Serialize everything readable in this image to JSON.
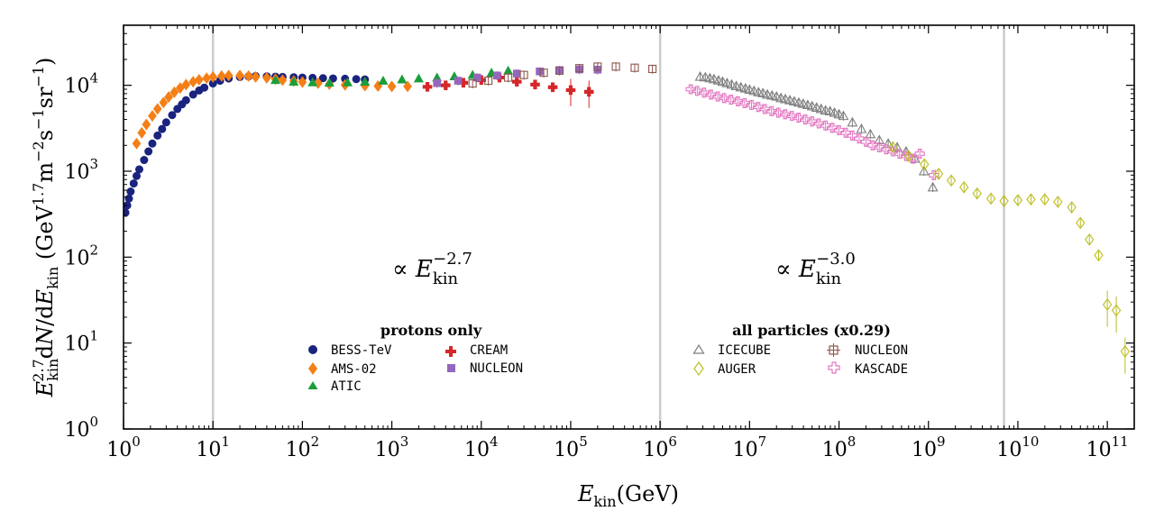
{
  "chart_data": {
    "type": "scatter",
    "xscale": "log",
    "yscale": "log",
    "xlim": [
      1,
      200000000000
    ],
    "ylim": [
      1,
      50000
    ],
    "xlabel": "E_kin (GeV)",
    "ylabel": "E_kin^2.7 dN/dE_kin (GeV^1.7 m^-2 s^-1 sr^-1)",
    "x_ticks": [
      1,
      10,
      100,
      1000,
      10000,
      100000,
      1000000,
      10000000,
      100000000,
      1000000000,
      10000000000,
      100000000000
    ],
    "y_ticks": [
      1,
      10,
      100,
      1000,
      10000
    ],
    "vertical_lines": [
      10,
      1000000,
      7000000000
    ],
    "annotations": [
      {
        "text": "∝ E_kin^-2.7",
        "x": 1500,
        "y": 180
      },
      {
        "text": "∝ E_kin^-3.0",
        "x": 60000000,
        "y": 180
      }
    ],
    "legends": [
      {
        "title": "protons only",
        "entries": [
          "BESS-TeV",
          "AMS-02",
          "ATIC",
          "CREAM",
          "NUCLEON"
        ]
      },
      {
        "title": "all particles (x0.29)",
        "entries": [
          "ICECUBE",
          "AUGER",
          "NUCLEON",
          "KASCADE"
        ]
      }
    ],
    "series": [
      {
        "name": "BESS-TeV",
        "color": "#1a237e",
        "marker": "circle-filled",
        "points": [
          [
            1.05,
            330
          ],
          [
            1.1,
            400
          ],
          [
            1.15,
            480
          ],
          [
            1.2,
            580
          ],
          [
            1.3,
            720
          ],
          [
            1.4,
            880
          ],
          [
            1.5,
            1050
          ],
          [
            1.7,
            1350
          ],
          [
            1.9,
            1700
          ],
          [
            2.1,
            2100
          ],
          [
            2.4,
            2600
          ],
          [
            2.7,
            3100
          ],
          [
            3,
            3700
          ],
          [
            3.5,
            4500
          ],
          [
            4,
            5300
          ],
          [
            4.5,
            6000
          ],
          [
            5,
            6700
          ],
          [
            6,
            7800
          ],
          [
            7,
            8700
          ],
          [
            8,
            9400
          ],
          [
            10,
            10500
          ],
          [
            12,
            11300
          ],
          [
            15,
            12000
          ],
          [
            20,
            12500
          ],
          [
            25,
            12700
          ],
          [
            30,
            12800
          ],
          [
            40,
            12700
          ],
          [
            50,
            12600
          ],
          [
            60,
            12500
          ],
          [
            80,
            12400
          ],
          [
            100,
            12300
          ],
          [
            130,
            12200
          ],
          [
            170,
            12100
          ],
          [
            220,
            12000
          ],
          [
            300,
            11900
          ],
          [
            400,
            11800
          ],
          [
            500,
            11700
          ]
        ]
      },
      {
        "name": "AMS-02",
        "color": "#f57f17",
        "marker": "diamond-filled",
        "points": [
          [
            1.4,
            2100
          ],
          [
            1.6,
            2800
          ],
          [
            1.8,
            3500
          ],
          [
            2.1,
            4400
          ],
          [
            2.4,
            5300
          ],
          [
            2.8,
            6300
          ],
          [
            3.2,
            7300
          ],
          [
            3.7,
            8300
          ],
          [
            4.3,
            9300
          ],
          [
            5,
            10200
          ],
          [
            6,
            11000
          ],
          [
            7,
            11600
          ],
          [
            8.5,
            12100
          ],
          [
            10,
            12500
          ],
          [
            12.5,
            12800
          ],
          [
            15,
            13000
          ],
          [
            20,
            13000
          ],
          [
            25,
            12800
          ],
          [
            30,
            12500
          ],
          [
            40,
            12200
          ],
          [
            50,
            11800
          ],
          [
            60,
            11500
          ],
          [
            80,
            11200
          ],
          [
            100,
            10900
          ],
          [
            150,
            10600
          ],
          [
            200,
            10300
          ],
          [
            300,
            10100
          ],
          [
            500,
            9900
          ],
          [
            700,
            9800
          ],
          [
            1000,
            9700
          ],
          [
            1500,
            9700
          ]
        ]
      },
      {
        "name": "ATIC",
        "color": "#1b9e3a",
        "marker": "triangle-filled",
        "points": [
          [
            50,
            11500
          ],
          [
            80,
            11000
          ],
          [
            130,
            10800
          ],
          [
            200,
            10700
          ],
          [
            320,
            10800
          ],
          [
            500,
            11000
          ],
          [
            800,
            11300
          ],
          [
            1300,
            11700
          ],
          [
            2000,
            12000
          ],
          [
            3200,
            12300
          ],
          [
            5000,
            12700
          ],
          [
            8000,
            13200
          ],
          [
            13000,
            14000
          ],
          [
            20000,
            14800
          ]
        ]
      },
      {
        "name": "CREAM",
        "color": "#d62728",
        "marker": "plus-filled",
        "points": [
          [
            2500,
            9600
          ],
          [
            4000,
            10000
          ],
          [
            6300,
            10700
          ],
          [
            10000,
            11500
          ],
          [
            16000,
            12300
          ],
          [
            25000,
            11000
          ],
          [
            40000,
            10200
          ],
          [
            63000,
            9500
          ],
          [
            100000,
            8800
          ],
          [
            160000,
            8400
          ]
        ]
      },
      {
        "name": "NUCLEON (protons)",
        "color": "#9467bd",
        "marker": "square-filled",
        "points": [
          [
            3200,
            10600
          ],
          [
            5500,
            11300
          ],
          [
            9000,
            12300
          ],
          [
            15000,
            13000
          ],
          [
            25000,
            13700
          ],
          [
            45000,
            14500
          ],
          [
            75000,
            15000
          ],
          [
            125000,
            15300
          ],
          [
            200000,
            15200
          ]
        ]
      },
      {
        "name": "NUCLEON (all particles)",
        "color": "#8c564b",
        "marker": "square-open",
        "points": [
          [
            8000,
            10500
          ],
          [
            12000,
            11300
          ],
          [
            20000,
            12300
          ],
          [
            30000,
            13200
          ],
          [
            50000,
            14000
          ],
          [
            75000,
            14800
          ],
          [
            125000,
            15800
          ],
          [
            200000,
            16500
          ],
          [
            320000,
            16500
          ],
          [
            520000,
            16000
          ],
          [
            820000,
            15500
          ]
        ]
      },
      {
        "name": "ICECUBE",
        "color": "#7f7f7f",
        "marker": "triangle-open",
        "points": [
          [
            2800000,
            12600
          ],
          [
            3200000,
            12400
          ],
          [
            3600000,
            12100
          ],
          [
            4000000,
            11800
          ],
          [
            4500000,
            11400
          ],
          [
            5000000,
            11000
          ],
          [
            5600000,
            10600
          ],
          [
            6300000,
            10200
          ],
          [
            7100000,
            9800
          ],
          [
            8000000,
            9500
          ],
          [
            9000000,
            9200
          ],
          [
            10000000,
            8900
          ],
          [
            11200000,
            8600
          ],
          [
            12600000,
            8300
          ],
          [
            14100000,
            8100
          ],
          [
            15800000,
            7800
          ],
          [
            17800000,
            7600
          ],
          [
            20000000,
            7400
          ],
          [
            22400000,
            7100
          ],
          [
            25100000,
            6900
          ],
          [
            28200000,
            6700
          ],
          [
            31600000,
            6500
          ],
          [
            35500000,
            6300
          ],
          [
            39800000,
            6100
          ],
          [
            44700000,
            5900
          ],
          [
            50100000,
            5700
          ],
          [
            56200000,
            5500
          ],
          [
            63100000,
            5300
          ],
          [
            70800000,
            5100
          ],
          [
            79400000,
            5000
          ],
          [
            89100000,
            4800
          ],
          [
            100000000,
            4600
          ],
          [
            112000000,
            4400
          ],
          [
            141000000,
            3700
          ],
          [
            178000000,
            3100
          ],
          [
            224000000,
            2700
          ],
          [
            282000000,
            2300
          ],
          [
            355000000,
            2100
          ],
          [
            447000000,
            1900
          ],
          [
            562000000,
            1700
          ],
          [
            708000000,
            1400
          ],
          [
            891000000,
            1000
          ],
          [
            1120000000,
            650
          ]
        ]
      },
      {
        "name": "KASCADE",
        "color": "#e377c2",
        "marker": "plus-open",
        "points": [
          [
            2200000,
            9000
          ],
          [
            2600000,
            8600
          ],
          [
            3100000,
            8200
          ],
          [
            3700000,
            7800
          ],
          [
            4400000,
            7400
          ],
          [
            5200000,
            7100
          ],
          [
            6200000,
            6800
          ],
          [
            7400000,
            6500
          ],
          [
            8800000,
            6200
          ],
          [
            10500000,
            5900
          ],
          [
            12500000,
            5600
          ],
          [
            14800000,
            5300
          ],
          [
            17600000,
            5000
          ],
          [
            21000000,
            4800
          ],
          [
            25000000,
            4600
          ],
          [
            29700000,
            4400
          ],
          [
            35300000,
            4200
          ],
          [
            42000000,
            4000
          ],
          [
            50000000,
            3800
          ],
          [
            59400000,
            3600
          ],
          [
            70700000,
            3400
          ],
          [
            84100000,
            3200
          ],
          [
            100000000,
            3000
          ],
          [
            119000000,
            2800
          ],
          [
            141000000,
            2600
          ],
          [
            168000000,
            2400
          ],
          [
            200000000,
            2200
          ],
          [
            238000000,
            2000
          ],
          [
            282000000,
            1900
          ],
          [
            336000000,
            1800
          ],
          [
            400000000,
            1700
          ],
          [
            475000000,
            1600
          ],
          [
            565000000,
            1500
          ],
          [
            672000000,
            1400
          ],
          [
            800000000,
            1600
          ],
          [
            1150000000,
            900
          ]
        ]
      },
      {
        "name": "AUGER",
        "color": "#bcbd22",
        "marker": "diamond-open",
        "points": [
          [
            400000000,
            1900
          ],
          [
            600000000,
            1500
          ],
          [
            900000000,
            1200
          ],
          [
            1300000000,
            930
          ],
          [
            1800000000,
            780
          ],
          [
            2500000000,
            650
          ],
          [
            3500000000,
            550
          ],
          [
            5000000000,
            480
          ],
          [
            7000000000,
            450
          ],
          [
            10000000000,
            460
          ],
          [
            14000000000,
            470
          ],
          [
            20000000000,
            470
          ],
          [
            28000000000,
            440
          ],
          [
            40000000000,
            380
          ],
          [
            50000000000,
            250
          ],
          [
            63000000000,
            160
          ],
          [
            80000000000,
            105
          ],
          [
            100000000000,
            28
          ],
          [
            126000000000,
            24
          ],
          [
            158000000000,
            8
          ]
        ]
      }
    ]
  }
}
